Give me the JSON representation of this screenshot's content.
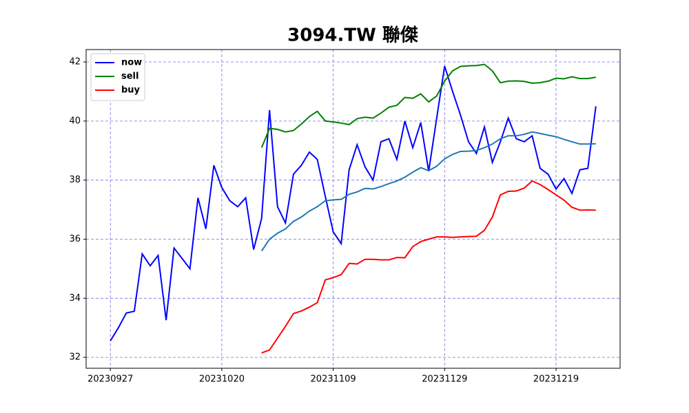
{
  "chart_data": {
    "type": "line",
    "title": "3094.TW 聯傑",
    "categories": [
      "20230927",
      null,
      null,
      null,
      null,
      null,
      null,
      null,
      null,
      null,
      null,
      null,
      null,
      null,
      "20231020",
      null,
      null,
      null,
      null,
      null,
      null,
      null,
      null,
      null,
      null,
      null,
      null,
      null,
      "20231109",
      null,
      null,
      null,
      null,
      null,
      null,
      null,
      null,
      null,
      null,
      null,
      null,
      null,
      "20231129",
      null,
      null,
      null,
      null,
      null,
      null,
      null,
      null,
      null,
      null,
      null,
      null,
      null,
      "20231219",
      null,
      null,
      null,
      null,
      null
    ],
    "series": [
      {
        "name": "now",
        "color": "#0000ff",
        "values": [
          32.56,
          33.0,
          33.5,
          33.56,
          35.5,
          35.1,
          35.45,
          33.26,
          35.7,
          35.35,
          35.0,
          37.4,
          36.35,
          38.5,
          37.75,
          37.3,
          37.1,
          37.4,
          35.65,
          36.7,
          40.37,
          37.1,
          36.55,
          38.2,
          38.5,
          38.95,
          38.7,
          37.45,
          36.25,
          35.85,
          38.35,
          39.2,
          38.45,
          38.0,
          39.3,
          39.4,
          38.7,
          40.0,
          39.1,
          39.95,
          38.3,
          40.1,
          41.86,
          41.0,
          40.2,
          39.3,
          38.9,
          39.8,
          38.6,
          39.3,
          40.1,
          39.4,
          39.3,
          39.5,
          38.4,
          38.2,
          37.7,
          38.05,
          37.55,
          38.35,
          38.4,
          40.5
        ]
      },
      {
        "name": "sell",
        "color": "#008000",
        "values": [
          null,
          null,
          null,
          null,
          null,
          null,
          null,
          null,
          null,
          null,
          null,
          null,
          null,
          null,
          null,
          null,
          null,
          null,
          null,
          39.1,
          39.75,
          39.72,
          39.63,
          39.68,
          39.9,
          40.15,
          40.33,
          40.0,
          39.97,
          39.93,
          39.88,
          40.08,
          40.13,
          40.1,
          40.27,
          40.47,
          40.53,
          40.8,
          40.77,
          40.92,
          40.65,
          40.85,
          41.35,
          41.7,
          41.85,
          41.87,
          41.88,
          41.92,
          41.7,
          41.3,
          41.35,
          41.36,
          41.34,
          41.28,
          41.3,
          41.35,
          41.45,
          41.43,
          41.5,
          41.44,
          41.44,
          41.48
        ]
      },
      {
        "name": "buy",
        "color": "#ff0000",
        "values": [
          null,
          null,
          null,
          null,
          null,
          null,
          null,
          null,
          null,
          null,
          null,
          null,
          null,
          null,
          null,
          null,
          null,
          null,
          null,
          32.15,
          32.25,
          32.65,
          33.05,
          33.48,
          33.57,
          33.7,
          33.85,
          34.62,
          34.7,
          34.8,
          35.18,
          35.16,
          35.32,
          35.32,
          35.3,
          35.3,
          35.38,
          35.37,
          35.75,
          35.92,
          36.0,
          36.08,
          36.08,
          36.06,
          36.08,
          36.09,
          36.1,
          36.3,
          36.75,
          37.5,
          37.62,
          37.63,
          37.73,
          37.97,
          37.85,
          37.68,
          37.5,
          37.32,
          37.08,
          36.98,
          36.99,
          36.98
        ]
      },
      {
        "color": "#1f77b4",
        "values": [
          null,
          null,
          null,
          null,
          null,
          null,
          null,
          null,
          null,
          null,
          null,
          null,
          null,
          null,
          null,
          null,
          null,
          null,
          null,
          35.6,
          36.0,
          36.2,
          36.35,
          36.6,
          36.75,
          36.95,
          37.1,
          37.3,
          37.33,
          37.35,
          37.52,
          37.6,
          37.72,
          37.7,
          37.78,
          37.88,
          37.97,
          38.1,
          38.27,
          38.42,
          38.32,
          38.47,
          38.72,
          38.87,
          38.97,
          38.98,
          39.0,
          39.1,
          39.22,
          39.4,
          39.5,
          39.5,
          39.55,
          39.63,
          39.58,
          39.52,
          39.47,
          39.38,
          39.3,
          39.22,
          39.22,
          39.23
        ]
      }
    ],
    "ylim": [
      31.63,
      42.42
    ],
    "yticks": [
      32,
      34,
      36,
      38,
      40,
      42
    ],
    "grid": true,
    "legend": "upper left"
  }
}
